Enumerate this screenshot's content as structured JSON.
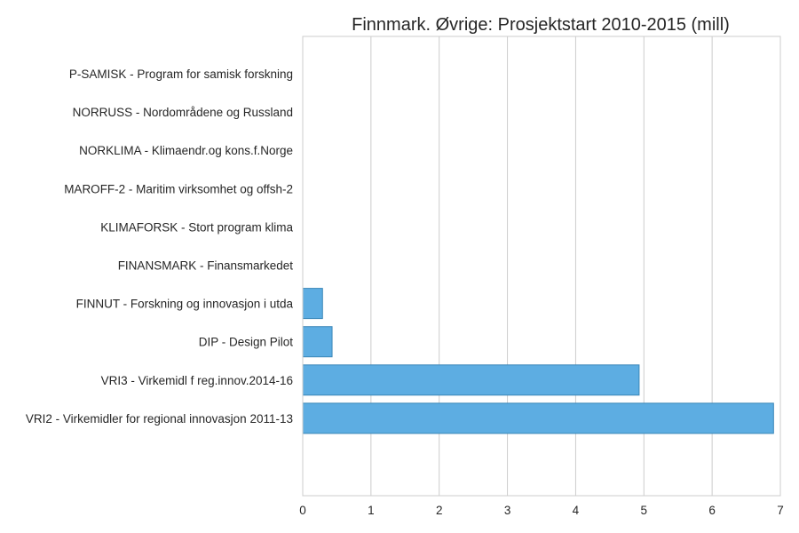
{
  "chart_data": {
    "type": "bar",
    "orientation": "horizontal",
    "title": "Finnmark. Øvrige: Prosjektstart 2010-2015 (mill)",
    "xlabel": "",
    "ylabel": "",
    "xlim": [
      0,
      7
    ],
    "xticks": [
      "0",
      "1",
      "2",
      "3",
      "4",
      "5",
      "6",
      "7"
    ],
    "grid": "vertical",
    "bar_color": "#5dade2",
    "categories": [
      "P-SAMISK - Program for samisk forskning",
      "NORRUSS - Nordområdene og Russland",
      "NORKLIMA - Klimaendr.og kons.f.Norge",
      "MAROFF-2 - Maritim virksomhet og offsh-2",
      "KLIMAFORSK - Stort program klima",
      "FINANSMARK - Finansmarkedet",
      "FINNUT - Forskning og innovasjon i utda",
      "DIP - Design Pilot",
      "VRI3 - Virkemidl f reg.innov.2014-16",
      "VRI2 - Virkemidler for regional innovasjon 2011-13"
    ],
    "values": [
      0,
      0,
      0,
      0,
      0,
      0,
      0.29,
      0.43,
      4.93,
      6.9
    ]
  }
}
